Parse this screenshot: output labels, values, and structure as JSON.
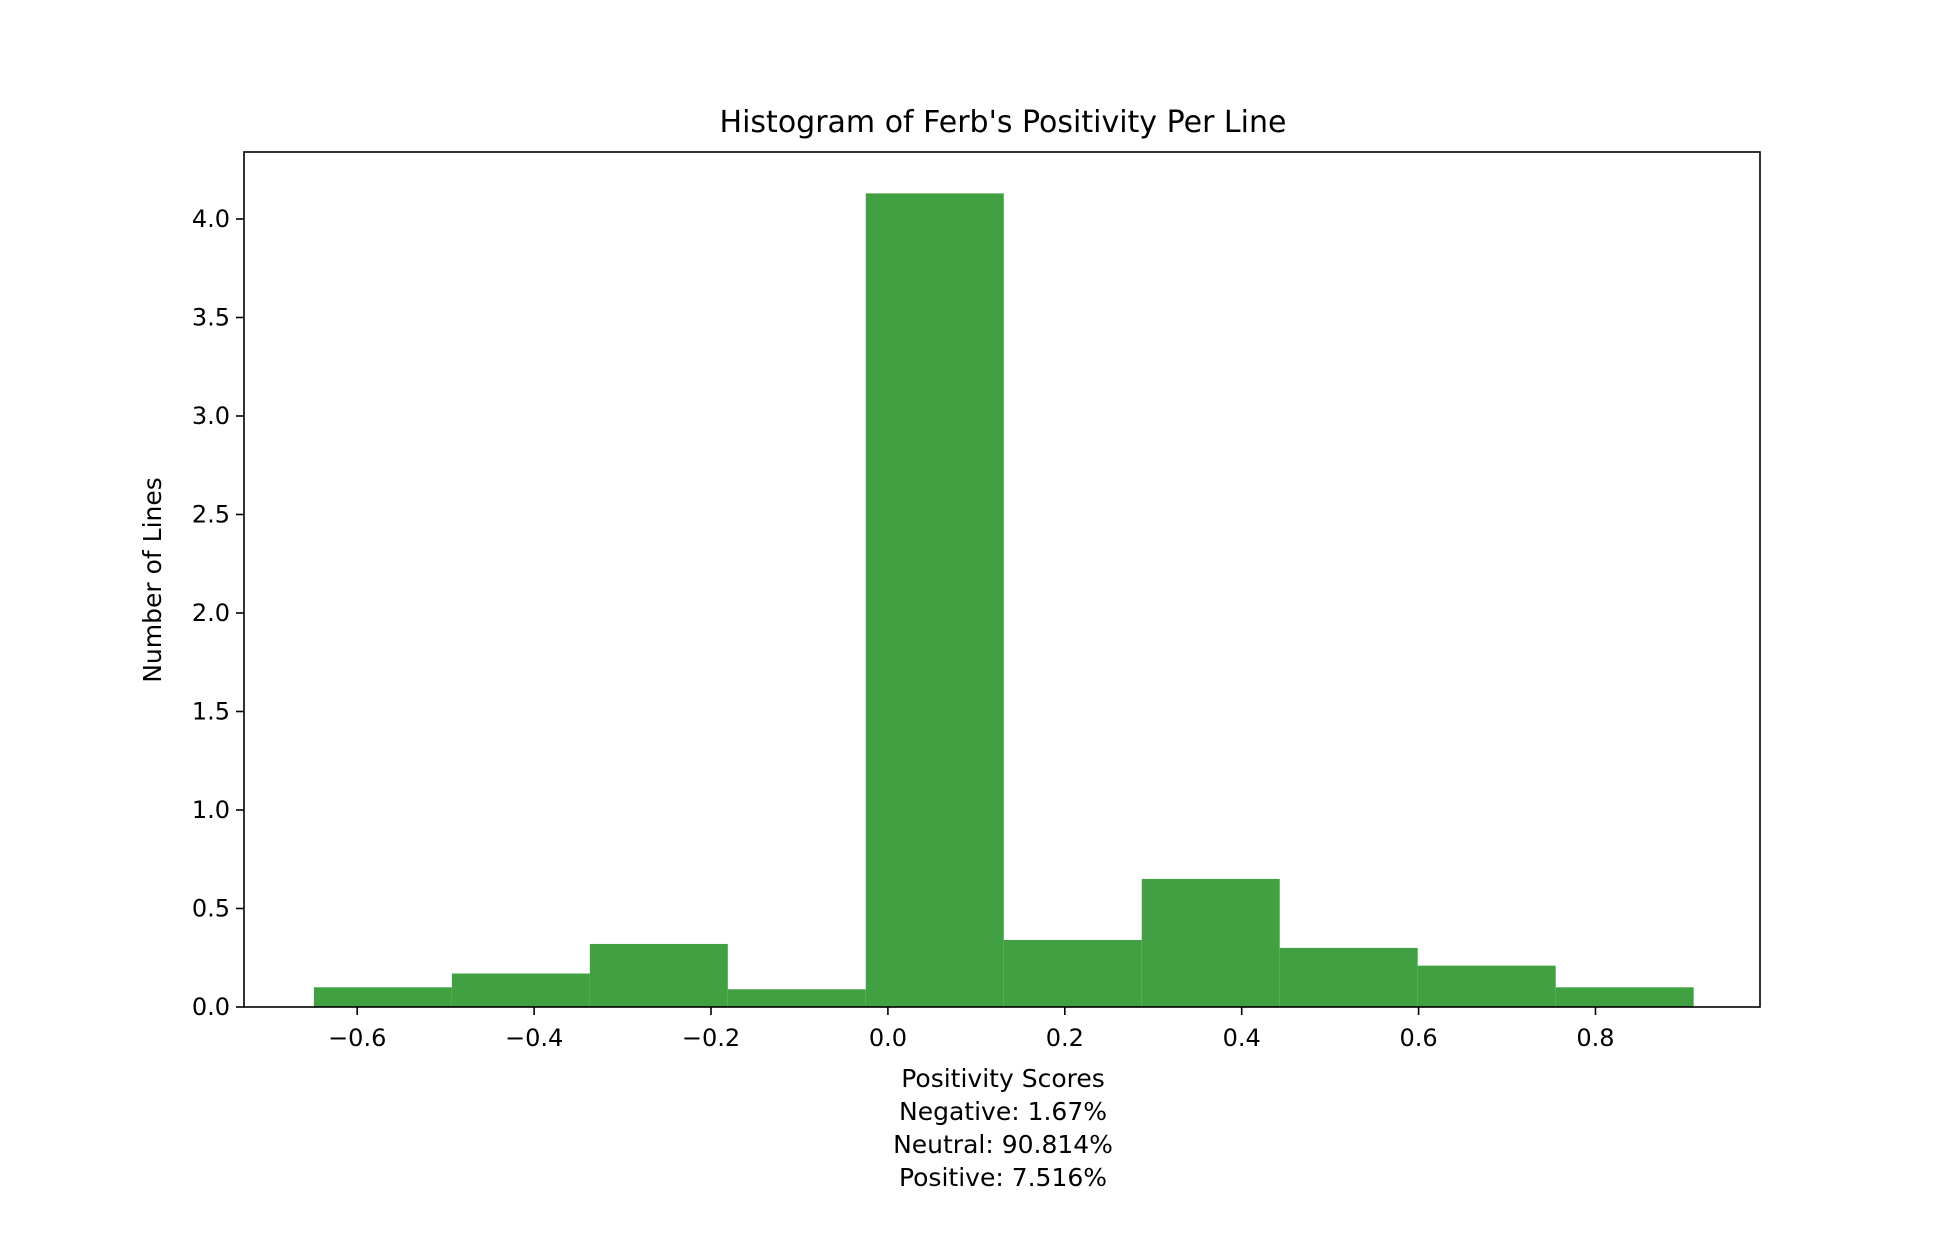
{
  "chart_data": {
    "type": "bar",
    "title": "Histogram of Ferb's Positivity Per Line",
    "xlabel": "Positivity Scores",
    "xlabel_lines": [
      "Positivity Scores",
      "Negative: 1.67%",
      "Neutral: 90.814%",
      "Positive: 7.516%"
    ],
    "ylabel": "Number of Lines",
    "xlim": [
      -0.728,
      0.986
    ],
    "ylim": [
      0,
      4.34
    ],
    "x_ticks": [
      -0.6,
      -0.4,
      -0.2,
      0.0,
      0.2,
      0.4,
      0.6,
      0.8
    ],
    "x_tick_labels": [
      "−0.6",
      "−0.4",
      "−0.2",
      "0.0",
      "0.2",
      "0.4",
      "0.6",
      "0.8"
    ],
    "y_ticks": [
      0,
      0.5,
      1,
      1.5,
      2,
      2.5,
      3,
      3.5,
      4
    ],
    "y_tick_labels": [
      "0.0",
      "0.5",
      "1.0",
      "1.5",
      "2.0",
      "2.5",
      "3.0",
      "3.5",
      "4.0"
    ],
    "grid": false,
    "bar_color": "#41a041",
    "bins": [
      {
        "x0": -0.649,
        "x1": -0.493,
        "value": 0.1
      },
      {
        "x0": -0.493,
        "x1": -0.337,
        "value": 0.17
      },
      {
        "x0": -0.337,
        "x1": -0.181,
        "value": 0.32
      },
      {
        "x0": -0.181,
        "x1": -0.025,
        "value": 0.09
      },
      {
        "x0": -0.025,
        "x1": 0.131,
        "value": 4.13
      },
      {
        "x0": 0.131,
        "x1": 0.287,
        "value": 0.34
      },
      {
        "x0": 0.287,
        "x1": 0.443,
        "value": 0.65
      },
      {
        "x0": 0.443,
        "x1": 0.599,
        "value": 0.3
      },
      {
        "x0": 0.599,
        "x1": 0.755,
        "value": 0.21
      },
      {
        "x0": 0.755,
        "x1": 0.911,
        "value": 0.1
      }
    ]
  }
}
